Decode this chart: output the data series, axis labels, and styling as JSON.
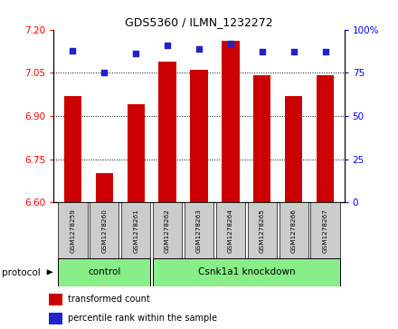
{
  "title": "GDS5360 / ILMN_1232272",
  "samples": [
    "GSM1278259",
    "GSM1278260",
    "GSM1278261",
    "GSM1278262",
    "GSM1278263",
    "GSM1278264",
    "GSM1278265",
    "GSM1278266",
    "GSM1278267"
  ],
  "transformed_counts": [
    6.97,
    6.7,
    6.94,
    7.09,
    7.06,
    7.16,
    7.04,
    6.97,
    7.04
  ],
  "percentile_ranks": [
    88,
    75,
    86,
    91,
    89,
    92,
    87,
    87,
    87
  ],
  "ylim_left": [
    6.6,
    7.2
  ],
  "ylim_right": [
    0,
    100
  ],
  "yticks_left": [
    6.6,
    6.75,
    6.9,
    7.05,
    7.2
  ],
  "yticks_right": [
    0,
    25,
    50,
    75,
    100
  ],
  "bar_color": "#CC0000",
  "dot_color": "#2222CC",
  "control_indices": [
    0,
    1,
    2
  ],
  "knockdown_indices": [
    3,
    4,
    5,
    6,
    7,
    8
  ],
  "control_label": "control",
  "knockdown_label": "Csnk1a1 knockdown",
  "protocol_label": "protocol",
  "legend_bar_label": "transformed count",
  "legend_dot_label": "percentile rank within the sample",
  "group_color": "#88EE88",
  "tick_bg_color": "#CCCCCC",
  "bar_bottom": 6.6
}
